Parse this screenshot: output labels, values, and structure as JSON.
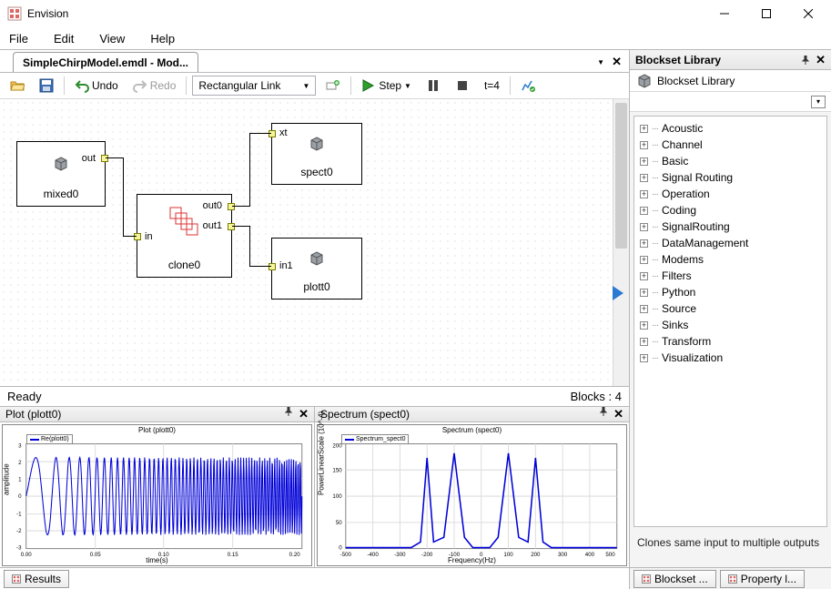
{
  "app": {
    "title": "Envision"
  },
  "menu": {
    "items": [
      "File",
      "Edit",
      "View",
      "Help"
    ]
  },
  "document": {
    "tab_title": "SimpleChirpModel.emdl - Mod..."
  },
  "toolbar": {
    "undo": "Undo",
    "redo": "Redo",
    "link_mode": "Rectangular Link",
    "step": "Step",
    "time": "t=4"
  },
  "canvas": {
    "status_left": "Ready",
    "status_right": "Blocks : 4",
    "blocks": {
      "mixed0": {
        "label": "mixed0",
        "ports": {
          "out": "out"
        }
      },
      "clone0": {
        "label": "clone0",
        "ports": {
          "in": "in",
          "out0": "out0",
          "out1": "out1"
        }
      },
      "spect0": {
        "label": "spect0",
        "ports": {
          "xt": "xt"
        }
      },
      "plott0": {
        "label": "plott0",
        "ports": {
          "in1": "in1"
        }
      }
    }
  },
  "plot_panel": {
    "title": "Plot (plott0)",
    "chart": {
      "type": "line",
      "title": "Plot (plott0)",
      "xlabel": "time(s)",
      "ylabel": "amplitude",
      "legend": "Re(plott0)",
      "xlim": [
        0.0,
        0.2
      ],
      "xticks": [
        0.0,
        0.05,
        0.1,
        0.15,
        0.2
      ],
      "ylim": [
        -3,
        3
      ],
      "yticks": [
        -3,
        -2,
        -1,
        0,
        1,
        2,
        3
      ],
      "line_color": "#0000d8",
      "background_color": "#ffffff",
      "grid_color": "#cfcfcf",
      "series_desc": "chirp oscillation with increasing frequency, amplitude approx ±2.5"
    }
  },
  "spectrum_panel": {
    "title": "Spectrum (spect0)",
    "chart": {
      "type": "line",
      "title": "Spectrum (spect0)",
      "xlabel": "Frequency(Hz)",
      "ylabel": "PowerLinearScale (10^-4)",
      "legend": "Spectrum_spect0",
      "xlim": [
        -500,
        500
      ],
      "xticks": [
        -500,
        -400,
        -300,
        -200,
        -100,
        0,
        100,
        200,
        300,
        400,
        500
      ],
      "ylim": [
        0,
        200
      ],
      "yticks": [
        0,
        50,
        100,
        150,
        200
      ],
      "line_color": "#0000d8",
      "background_color": "#ffffff",
      "grid_color": "#cfcfcf",
      "peaks_at": [
        -200,
        -100,
        100,
        200
      ]
    }
  },
  "sidebar": {
    "header": "Blockset Library",
    "title": "Blockset Library",
    "categories": [
      "Acoustic",
      "Channel",
      "Basic",
      "Signal Routing",
      "Operation",
      "Coding",
      "SignalRouting",
      "DataManagement",
      "Modems",
      "Filters",
      "Python",
      "Source",
      "Sinks",
      "Transform",
      "Visualization"
    ],
    "description": "Clones same input to multiple outputs",
    "tabs": {
      "blockset": "Blockset ...",
      "property": "Property l..."
    }
  },
  "bottom_tabs": {
    "results": "Results"
  },
  "colors": {
    "port_border": "#7a7a00",
    "port_fill": "#f5f59a",
    "accent_blue": "#2a7ad1",
    "wire": "#000000"
  }
}
